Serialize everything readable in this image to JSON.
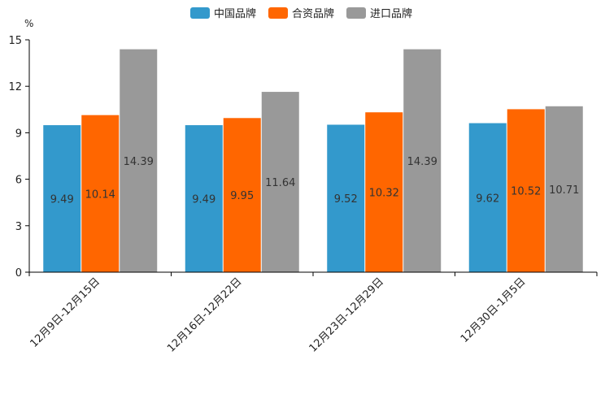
{
  "chart_data": {
    "type": "bar",
    "title": "",
    "xlabel": "",
    "ylabel": "%",
    "ylim": [
      0,
      15
    ],
    "yticks": [
      0,
      3,
      6,
      9,
      12,
      15
    ],
    "categories": [
      "12月9日-12月15日",
      "12月16日-12月22日",
      "12月23日-12月29日",
      "12月30日-1月5日"
    ],
    "series": [
      {
        "name": "中国品牌",
        "color": "#3399cc",
        "values": [
          9.49,
          9.49,
          9.52,
          9.62
        ]
      },
      {
        "name": "合资品牌",
        "color": "#ff6600",
        "values": [
          10.14,
          9.95,
          10.32,
          10.52
        ]
      },
      {
        "name": "进口品牌",
        "color": "#999999",
        "values": [
          14.39,
          11.64,
          14.39,
          10.71
        ]
      }
    ],
    "legend_position": "top-center",
    "grid": false
  }
}
